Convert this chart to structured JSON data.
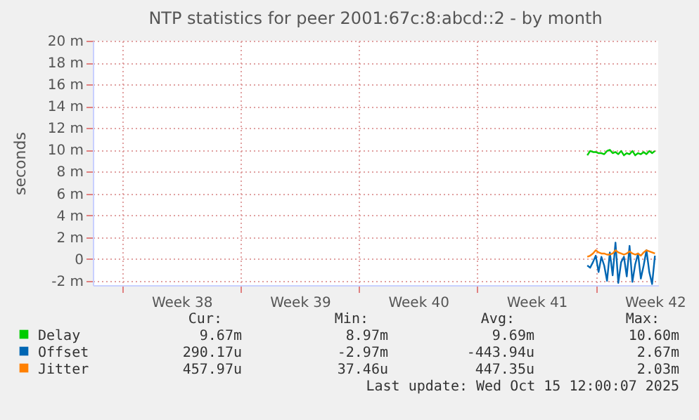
{
  "chart_data": {
    "type": "line",
    "title": "NTP statistics for peer 2001:67c:8:abcd::2 - by month",
    "ylabel": "seconds",
    "x": [
      "2025-10-11T12:00",
      "2025-10-11T16:00",
      "2025-10-11T20:00",
      "2025-10-12T00:00",
      "2025-10-12T04:00",
      "2025-10-12T08:00",
      "2025-10-12T12:00",
      "2025-10-12T16:00",
      "2025-10-12T20:00",
      "2025-10-13T00:00",
      "2025-10-13T04:00",
      "2025-10-13T08:00",
      "2025-10-13T12:00",
      "2025-10-13T16:00",
      "2025-10-13T20:00",
      "2025-10-14T00:00",
      "2025-10-14T04:00",
      "2025-10-14T08:00",
      "2025-10-14T12:00",
      "2025-10-14T16:00",
      "2025-10-14T20:00",
      "2025-10-15T00:00",
      "2025-10-15T04:00",
      "2025-10-15T08:00",
      "2025-10-15T12:00"
    ],
    "series": [
      {
        "name": "Delay",
        "color": "#00cc00",
        "values": [
          9.5,
          9.9,
          9.8,
          9.8,
          9.7,
          9.7,
          9.6,
          9.9,
          10.0,
          9.7,
          9.8,
          9.6,
          9.9,
          9.5,
          9.7,
          9.6,
          9.9,
          9.5,
          9.7,
          9.6,
          9.8,
          9.6,
          9.9,
          9.7,
          9.9
        ]
      },
      {
        "name": "Offset",
        "color": "#0066b3",
        "values": [
          -0.6,
          -0.8,
          -0.3,
          0.3,
          -1.2,
          0.2,
          -0.6,
          -2.0,
          0.6,
          -1.5,
          1.5,
          -2.2,
          -0.3,
          0.2,
          -1.6,
          1.2,
          -2.1,
          -0.5,
          0.5,
          -1.8,
          -0.6,
          0.8,
          -1.2,
          -2.3,
          0.3
        ]
      },
      {
        "name": "Jitter",
        "color": "#ff8000",
        "values": [
          0.2,
          0.3,
          0.5,
          0.8,
          0.6,
          0.5,
          0.5,
          0.4,
          0.4,
          0.5,
          0.8,
          0.6,
          0.5,
          0.4,
          0.5,
          0.7,
          0.5,
          0.4,
          0.5,
          0.3,
          0.6,
          0.8,
          0.7,
          0.6,
          0.5
        ]
      }
    ],
    "xlim": [
      "2025-09-12T06:00",
      "2025-10-15T16:40"
    ],
    "xticks": [
      {
        "value": "2025-09-14T00:00",
        "label": null
      },
      {
        "value": "2025-09-17T12:00",
        "label": "Week 38"
      },
      {
        "value": "2025-09-21T00:00",
        "label": null
      },
      {
        "value": "2025-09-24T12:00",
        "label": "Week 39"
      },
      {
        "value": "2025-09-28T00:00",
        "label": null
      },
      {
        "value": "2025-10-01T12:00",
        "label": "Week 40"
      },
      {
        "value": "2025-10-05T00:00",
        "label": null
      },
      {
        "value": "2025-10-08T12:00",
        "label": "Week 41"
      },
      {
        "value": "2025-10-12T00:00",
        "label": null
      },
      {
        "value": "2025-10-15T12:00",
        "label": "Week 42"
      }
    ],
    "ylim": [
      -2.4,
      20
    ],
    "yticks": [
      {
        "value": -2,
        "label": "-2 m"
      },
      0,
      {
        "value": 2,
        "label": "2 m"
      },
      {
        "value": 4,
        "label": "4 m"
      },
      {
        "value": 6,
        "label": "6 m"
      },
      {
        "value": 8,
        "label": "8 m"
      },
      {
        "value": 10,
        "label": "10 m"
      },
      {
        "value": 12,
        "label": "12 m"
      },
      {
        "value": 14,
        "label": "14 m"
      },
      {
        "value": 16,
        "label": "16 m"
      },
      {
        "value": 18,
        "label": "18 m"
      },
      {
        "value": 20,
        "label": "20 m"
      }
    ],
    "grid": true,
    "legend": "bottom",
    "marker": "none",
    "line_style": "solid",
    "annotations": [
      "Cur:",
      "Min:",
      "Avg:",
      "Max:",
      "9.67m",
      "8.97m",
      "9.69m",
      "10.60m",
      "290.17u",
      "-2.97m",
      "-443.94u",
      "2.67m",
      "457.97u",
      "37.46u",
      "447.35u",
      "2.03m",
      "Last update: Wed Oct 15 12:00:07 2025"
    ]
  }
}
